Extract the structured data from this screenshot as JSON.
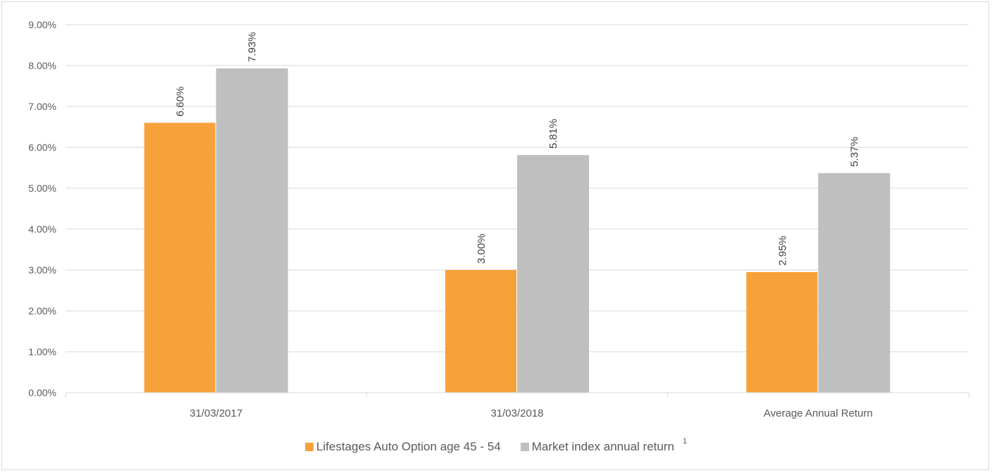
{
  "chart_data": {
    "type": "bar",
    "categories": [
      "31/03/2017",
      "31/03/2018",
      "Average Annual Return"
    ],
    "series": [
      {
        "name": "Lifestages Auto Option age 45 - 54",
        "values": [
          6.6,
          3.0,
          2.95
        ],
        "labels": [
          "6.60%",
          "3.00%",
          "2.95%"
        ],
        "color": "#f7a13b"
      },
      {
        "name": "Market index annual return",
        "values": [
          7.93,
          5.81,
          5.37
        ],
        "labels": [
          "7.93%",
          "5.81%",
          "5.37%"
        ],
        "color": "#bfbfbf"
      }
    ],
    "yticks": [
      "0.00%",
      "1.00%",
      "2.00%",
      "3.00%",
      "4.00%",
      "5.00%",
      "6.00%",
      "7.00%",
      "8.00%",
      "9.00%"
    ],
    "ylim": [
      0,
      9
    ],
    "grid": true,
    "legend_position": "bottom",
    "legend_footnote": "1",
    "title": "",
    "xlabel": "",
    "ylabel": ""
  }
}
